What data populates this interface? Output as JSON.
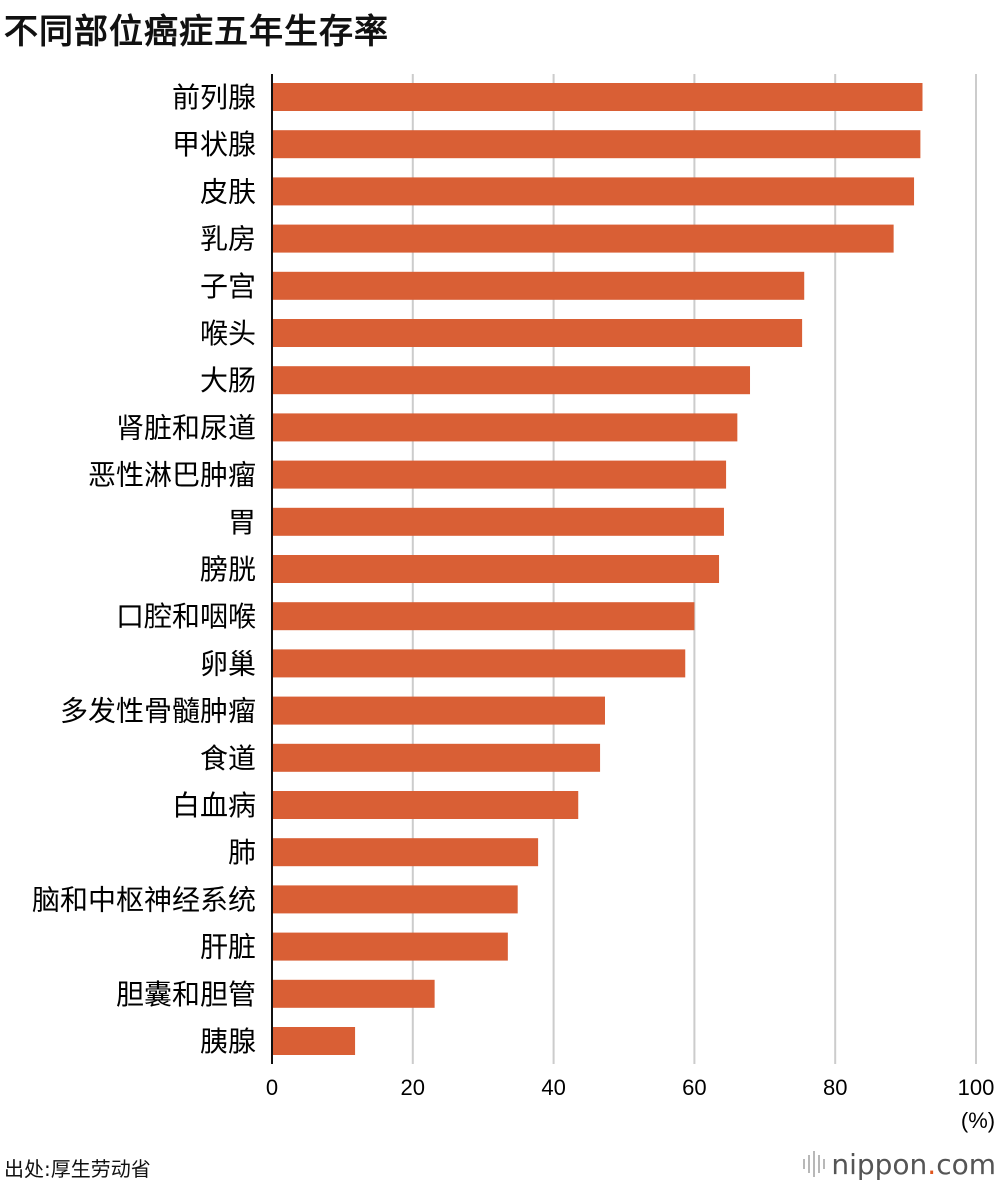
{
  "title": "不同部位癌症五年生存率",
  "source": "出处:厚生劳动省",
  "brand": {
    "name": "nippon",
    "dot": ".",
    "tld": "com",
    "icon": "sound-wave-logo-icon"
  },
  "colors": {
    "bar": "#d95f35",
    "grid": "#cccccc",
    "axis": "#111111"
  },
  "chart_data": {
    "type": "bar",
    "orientation": "horizontal",
    "title": "不同部位癌症五年生存率",
    "categories": [
      "前列腺",
      "甲状腺",
      "皮肤",
      "乳房",
      "子宫",
      "喉头",
      "大肠",
      "肾脏和尿道",
      "恶性淋巴肿瘤",
      "胃",
      "膀胱",
      "口腔和咽喉",
      "卵巢",
      "多发性骨髓肿瘤",
      "食道",
      "白血病",
      "肺",
      "脑和中枢神经系统",
      "肝脏",
      "胆囊和胆管",
      "胰腺"
    ],
    "values": [
      92.4,
      92.1,
      91.2,
      88.3,
      75.6,
      75.3,
      67.9,
      66.1,
      64.5,
      64.2,
      63.5,
      60.0,
      58.7,
      47.3,
      46.6,
      43.5,
      37.8,
      34.9,
      33.5,
      23.1,
      11.8
    ],
    "xlim": [
      0,
      100
    ],
    "xticks": [
      "0",
      "20",
      "40",
      "60",
      "80",
      "100"
    ],
    "xunit": "(%)",
    "grid": true
  }
}
